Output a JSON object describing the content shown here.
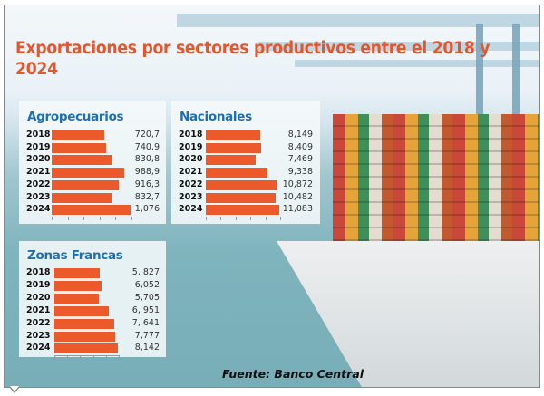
{
  "title": "Exportaciones por sectores productivos entre el 2018 y 2024",
  "source": "Fuente: Banco Central",
  "colors": {
    "bar": "#ec5a2b",
    "panel_title": "#1f6fb3",
    "title": "#e4572e"
  },
  "chart_data": [
    {
      "type": "bar",
      "orientation": "horizontal",
      "title": "Agropecuarios",
      "categories": [
        "2018",
        "2019",
        "2020",
        "2021",
        "2022",
        "2023",
        "2024"
      ],
      "values": [
        720.7,
        740.9,
        830.8,
        988.9,
        916.3,
        832.7,
        1076
      ],
      "value_labels": [
        "720,7",
        "740,9",
        "830,8",
        "988,9",
        "916,3",
        "832,7",
        "1,076"
      ]
    },
    {
      "type": "bar",
      "orientation": "horizontal",
      "title": "Nacionales",
      "categories": [
        "2018",
        "2019",
        "2020",
        "2021",
        "2022",
        "2023",
        "2024"
      ],
      "values": [
        8149,
        8409,
        7469,
        9338,
        10872,
        10482,
        11083
      ],
      "value_labels": [
        "8,149",
        "8,409",
        "7,469",
        "9,338",
        "10,872",
        "10,482",
        "11,083"
      ]
    },
    {
      "type": "bar",
      "orientation": "horizontal",
      "title": "Zonas Francas",
      "categories": [
        "2018",
        "2019",
        "2020",
        "2021",
        "2022",
        "2023",
        "2024"
      ],
      "values": [
        5827,
        6052,
        5705,
        6951,
        7641,
        7777,
        8142
      ],
      "value_labels": [
        "5, 827",
        "6,052",
        "5,705",
        "6, 951",
        "7, 641",
        "7,777",
        "8,142"
      ]
    }
  ]
}
